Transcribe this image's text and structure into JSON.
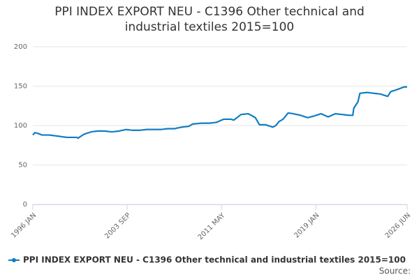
{
  "chart_data": {
    "type": "line",
    "title": "PPI INDEX EXPORT NEU - C1396 Other technical and industrial textiles 2015=100",
    "source": "Source:",
    "ylim": [
      0,
      200
    ],
    "yticks": [
      0,
      50,
      100,
      150,
      200
    ],
    "grid": true,
    "legend": "bottom",
    "categories": [
      "1996 JAN",
      null,
      null,
      null,
      null,
      null,
      null,
      null,
      null,
      null,
      null,
      null,
      null,
      null,
      null,
      null,
      null,
      null,
      null,
      null,
      null,
      null,
      null,
      null,
      null,
      null,
      null,
      null,
      null,
      null,
      null,
      null,
      null,
      null,
      null,
      null,
      null,
      null,
      null,
      null,
      null,
      null,
      null,
      null,
      null,
      null,
      null,
      null,
      null,
      null,
      null,
      null,
      null,
      null,
      null,
      null,
      null,
      null,
      null,
      null,
      null,
      null,
      null,
      null,
      null,
      null,
      null,
      null,
      null,
      null,
      null,
      null,
      null,
      null,
      null,
      null,
      null,
      null,
      null,
      null,
      null,
      null,
      null,
      null,
      null,
      null,
      null,
      null,
      null,
      null,
      null,
      null,
      "2003 SEP",
      null,
      null,
      null,
      null,
      null,
      null,
      null,
      null,
      null,
      null,
      null,
      null,
      null,
      null,
      null,
      null,
      null,
      null,
      null,
      null,
      null,
      null,
      null,
      null,
      null,
      null,
      null,
      null,
      null,
      null,
      null,
      null,
      null,
      null,
      null,
      null,
      null,
      null,
      null,
      null,
      null,
      null,
      null,
      null,
      null,
      null,
      null,
      null,
      null,
      null,
      null,
      null,
      null,
      null,
      null,
      null,
      null,
      null,
      null,
      null,
      null,
      null,
      null,
      null,
      null,
      null,
      null,
      null,
      null,
      null,
      null,
      null,
      null,
      null,
      null,
      null,
      null,
      null,
      null,
      null,
      null,
      null,
      null,
      null,
      null,
      null,
      null,
      null,
      null,
      null,
      null,
      "2011 MAY",
      null,
      null,
      null,
      null,
      null,
      null,
      null,
      null,
      null,
      null,
      null,
      null,
      null,
      null,
      null,
      null,
      null,
      null,
      null,
      null,
      null,
      null,
      null,
      null,
      null,
      null,
      null,
      null,
      null,
      null,
      null,
      null,
      null,
      null,
      null,
      null,
      null,
      null,
      null,
      null,
      null,
      null,
      null,
      null,
      null,
      null,
      null,
      null,
      null,
      null,
      null,
      null,
      null,
      null,
      null,
      null,
      null,
      null,
      null,
      null,
      null,
      null,
      null,
      null,
      null,
      null,
      null,
      null,
      null,
      null,
      null,
      null,
      null,
      null,
      null,
      null,
      null,
      null,
      null,
      null,
      null,
      null,
      null,
      null,
      null,
      null,
      null,
      null,
      null,
      null,
      null,
      "2019 JAN",
      null,
      null,
      null,
      null,
      null,
      null,
      null,
      null,
      null,
      null,
      null,
      null,
      null,
      null,
      null,
      null,
      null,
      null,
      null,
      null,
      null,
      null,
      null,
      null,
      null,
      null,
      null,
      null,
      null,
      null,
      null,
      null,
      null,
      null,
      null,
      null,
      null,
      null,
      null,
      null,
      null,
      null,
      null,
      null,
      null,
      null,
      null,
      null,
      null,
      null,
      null,
      null,
      null,
      null,
      null,
      null,
      null,
      null,
      null,
      null,
      null,
      null,
      null,
      null,
      null,
      null,
      null,
      null,
      null,
      null,
      null,
      null,
      null,
      null,
      null,
      null,
      null,
      null,
      null,
      null,
      null,
      null,
      null,
      null,
      null,
      null,
      null,
      null,
      "2026 JUN"
    ],
    "series": [
      {
        "name": "PPI INDEX EXPORT NEU - C1396 Other technical and industrial textiles 2015=100",
        "color": "#0f7dc2",
        "values": [
          88,
          89.5,
          91,
          90.7,
          90.3,
          90,
          89.5,
          89,
          88.5,
          88,
          88,
          88,
          88,
          88,
          88,
          88,
          88,
          87.8,
          87.7,
          87.5,
          87.3,
          87.2,
          87,
          86.8,
          86.6,
          86.5,
          86.3,
          86.1,
          85.9,
          85.7,
          85.5,
          85.4,
          85.2,
          85,
          85,
          85,
          85,
          85,
          85,
          85,
          85,
          85,
          85,
          85,
          84,
          84.8,
          85.7,
          86.5,
          87.3,
          88.2,
          89,
          89.4,
          89.9,
          90.3,
          90.7,
          91.1,
          91.6,
          92,
          92.2,
          92.3,
          92.5,
          92.7,
          92.8,
          93,
          93,
          93,
          93,
          93,
          93,
          93,
          93,
          92.9,
          92.7,
          92.6,
          92.4,
          92.3,
          92.1,
          92,
          92.1,
          92.3,
          92.4,
          92.6,
          92.7,
          92.9,
          93,
          93.3,
          93.6,
          93.9,
          94.1,
          94.4,
          94.7,
          95,
          94.8,
          94.7,
          94.5,
          94.3,
          94.2,
          94,
          94,
          94,
          94,
          94,
          94,
          94,
          94,
          94.1,
          94.3,
          94.4,
          94.6,
          94.7,
          94.9,
          95,
          95,
          95,
          95,
          95,
          95,
          95,
          95,
          95,
          95,
          95,
          95,
          95,
          95,
          95,
          95.2,
          95.3,
          95.5,
          95.7,
          95.8,
          96,
          96,
          96,
          96,
          96,
          96,
          96,
          96,
          96.3,
          96.6,
          96.9,
          97.1,
          97.4,
          97.7,
          98,
          98.1,
          98.3,
          98.4,
          98.6,
          98.7,
          98.9,
          99,
          99.8,
          100.5,
          101.3,
          102,
          102.1,
          102.2,
          102.3,
          102.4,
          102.6,
          102.7,
          102.8,
          102.9,
          103,
          103,
          103,
          103,
          103,
          103,
          103,
          103,
          103.1,
          103.3,
          103.4,
          103.6,
          103.7,
          103.9,
          104,
          104.6,
          105.1,
          105.7,
          106.3,
          106.9,
          107.4,
          108,
          108,
          108,
          108,
          108,
          108,
          108,
          108,
          107.7,
          107.3,
          107,
          108,
          109,
          110,
          111,
          112,
          113,
          114,
          114.1,
          114.3,
          114.4,
          114.6,
          114.7,
          114.9,
          115,
          114.3,
          113.7,
          113,
          112.3,
          111.5,
          110.8,
          110,
          107.8,
          105.5,
          103.3,
          101,
          101,
          101,
          101,
          101,
          101,
          101,
          100.6,
          100.1,
          99.7,
          99.3,
          98.9,
          98.4,
          98,
          98.7,
          99.3,
          100,
          101.7,
          103.3,
          105,
          105.8,
          106.5,
          107.3,
          108,
          109.6,
          111.2,
          112.8,
          114.4,
          116,
          115.8,
          115.6,
          115.4,
          115.2,
          115,
          114.7,
          114.4,
          114.1,
          113.9,
          113.6,
          113.3,
          113,
          112.6,
          112.1,
          111.7,
          111.3,
          110.9,
          110.4,
          110,
          110.3,
          110.7,
          111,
          111.3,
          111.7,
          112,
          112.4,
          112.9,
          113.3,
          113.7,
          114.1,
          114.6,
          115,
          114.4,
          113.9,
          113.3,
          112.7,
          112.1,
          111.6,
          111,
          111.6,
          112.1,
          112.7,
          113.3,
          113.9,
          114.4,
          115,
          114.9,
          114.7,
          114.6,
          114.4,
          114.3,
          114.1,
          114,
          113.8,
          113.7,
          113.5,
          113.3,
          113.2,
          113,
          113,
          113,
          113,
          113,
          122,
          124,
          126,
          128,
          130,
          135.5,
          141,
          141.1,
          141.3,
          141.4,
          141.6,
          141.7,
          141.9,
          142,
          141.8,
          141.7,
          141.5,
          141.3,
          141.2,
          141,
          140.9,
          140.7,
          140.6,
          140.4,
          140.3,
          140.1,
          140,
          139.6,
          139.1,
          138.7,
          138.3,
          137.9,
          137.4,
          137,
          139,
          141,
          143,
          143.4,
          143.9,
          144.3,
          144.7,
          145.1,
          145.6,
          146,
          146.5,
          147,
          147.5,
          148,
          148.5,
          149,
          149,
          149,
          149
        ]
      }
    ]
  }
}
